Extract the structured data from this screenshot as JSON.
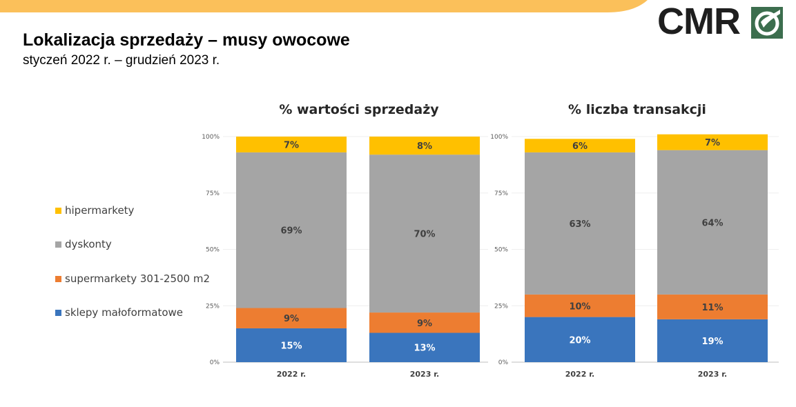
{
  "header": {
    "title": "Lokalizacja sprzedaży – musy owocowe",
    "subtitle": "styczeń 2022 r. – grudzień 2023 r.",
    "logo_text": "CMR",
    "accent_color": "#FBC05A",
    "logo_color": "#1E1E1E",
    "logo_mark_color": "#3C6E4E"
  },
  "legend": {
    "items": [
      {
        "label": "hipermarkety",
        "color": "#FFC000"
      },
      {
        "label": "dyskonty",
        "color": "#A5A5A5"
      },
      {
        "label": "supermarkety 301-2500 m2",
        "color": "#ED7D31"
      },
      {
        "label": "sklepy małoformatowe",
        "color": "#3A75BD"
      }
    ]
  },
  "chart_data": [
    {
      "type": "bar",
      "stacked": true,
      "percent_stacked": true,
      "title": "% wartości sprzedaży",
      "categories": [
        "2022 r.",
        "2023 r."
      ],
      "yticks": [
        "0%",
        "25%",
        "50%",
        "75%",
        "100%"
      ],
      "ylim": [
        0,
        100
      ],
      "series": [
        {
          "name": "sklepy małoformatowe",
          "values": [
            15,
            13
          ],
          "labels": [
            "15%",
            "13%"
          ]
        },
        {
          "name": "supermarkety 301-2500 m2",
          "values": [
            9,
            9
          ],
          "labels": [
            "9%",
            "9%"
          ]
        },
        {
          "name": "dyskonty",
          "values": [
            69,
            70
          ],
          "labels": [
            "69%",
            "70%"
          ]
        },
        {
          "name": "hipermarkety",
          "values": [
            7,
            8
          ],
          "labels": [
            "7%",
            "8%"
          ]
        }
      ]
    },
    {
      "type": "bar",
      "stacked": true,
      "percent_stacked": true,
      "title": "% liczba transakcji",
      "categories": [
        "2022 r.",
        "2023 r."
      ],
      "yticks": [
        "0%",
        "25%",
        "50%",
        "75%",
        "100%"
      ],
      "ylim": [
        0,
        100
      ],
      "series": [
        {
          "name": "sklepy małoformatowe",
          "values": [
            20,
            19
          ],
          "labels": [
            "20%",
            "19%"
          ]
        },
        {
          "name": "supermarkety 301-2500 m2",
          "values": [
            10,
            11
          ],
          "labels": [
            "10%",
            "11%"
          ]
        },
        {
          "name": "dyskonty",
          "values": [
            63,
            64
          ],
          "labels": [
            "63%",
            "64%"
          ]
        },
        {
          "name": "hipermarkety",
          "values": [
            6,
            7
          ],
          "labels": [
            "6%",
            "7%"
          ]
        }
      ]
    }
  ]
}
